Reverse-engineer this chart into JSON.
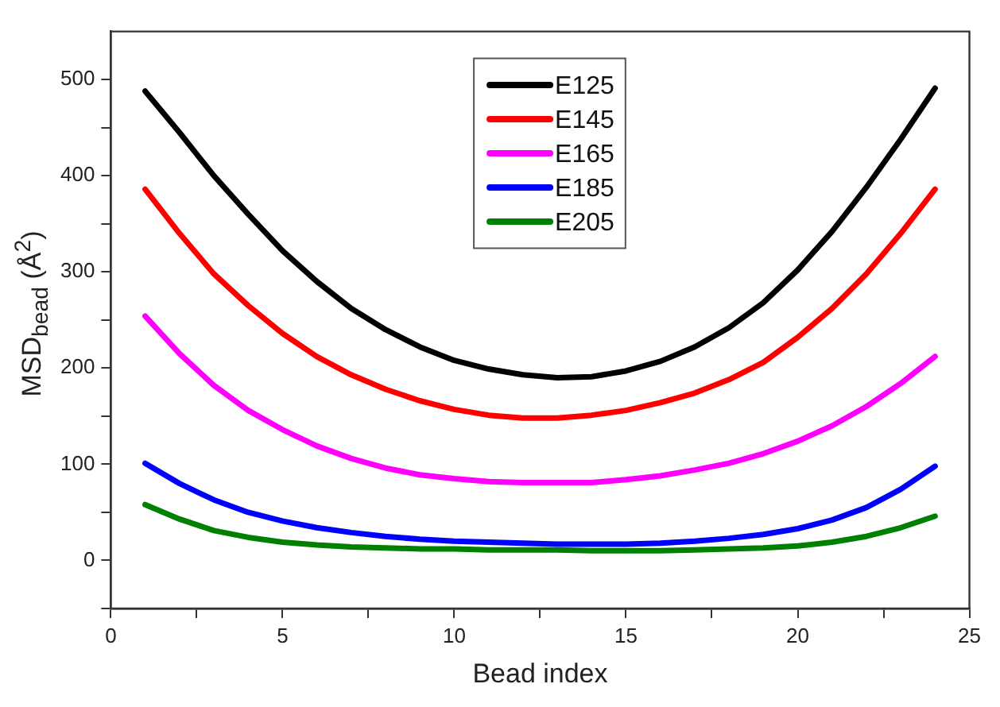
{
  "chart_data": {
    "type": "line",
    "xlabel": "Bead index",
    "ylabel": "MSD$_{bead}$ (Å$^{2}$)",
    "x": [
      1,
      2,
      3,
      4,
      5,
      6,
      7,
      8,
      9,
      10,
      11,
      12,
      13,
      14,
      15,
      16,
      17,
      18,
      19,
      20,
      21,
      22,
      23,
      24
    ],
    "series": [
      {
        "name": "E125",
        "color": "#000000",
        "values": [
          488,
          445,
          400,
          360,
          322,
          290,
          262,
          240,
          222,
          208,
          199,
          193,
          190,
          191,
          197,
          207,
          222,
          242,
          268,
          302,
          342,
          388,
          438,
          491
        ]
      },
      {
        "name": "E145",
        "color": "#ff0000",
        "values": [
          386,
          340,
          298,
          265,
          236,
          212,
          193,
          178,
          166,
          157,
          151,
          148,
          148,
          151,
          156,
          164,
          174,
          188,
          206,
          232,
          262,
          298,
          340,
          386
        ]
      },
      {
        "name": "E165",
        "color": "#ff00ff",
        "values": [
          254,
          215,
          182,
          156,
          136,
          119,
          106,
          96,
          89,
          85,
          82,
          81,
          81,
          81,
          84,
          88,
          94,
          101,
          111,
          124,
          140,
          160,
          184,
          212
        ]
      },
      {
        "name": "E185",
        "color": "#0000ff",
        "values": [
          101,
          80,
          63,
          50,
          41,
          34,
          29,
          25,
          22,
          20,
          19,
          18,
          17,
          17,
          17,
          18,
          20,
          23,
          27,
          33,
          42,
          55,
          74,
          98
        ]
      },
      {
        "name": "E205",
        "color": "#008000",
        "values": [
          58,
          43,
          31,
          24,
          19,
          16,
          14,
          13,
          12,
          12,
          11,
          11,
          11,
          10,
          10,
          10,
          11,
          12,
          13,
          15,
          19,
          25,
          34,
          46
        ]
      }
    ],
    "xlim": [
      0,
      25
    ],
    "ylim": [
      -50,
      550
    ],
    "xticks": [
      0,
      {
        "value": 2.5,
        "label": null
      },
      5,
      {
        "value": 7.5,
        "label": null
      },
      10,
      {
        "value": 12.5,
        "label": null
      },
      15,
      {
        "value": 17.5,
        "label": null
      },
      20,
      {
        "value": 22.5,
        "label": null
      },
      25
    ],
    "yticks": [
      {
        "value": -50,
        "label": null
      },
      0,
      {
        "value": 50,
        "label": null
      },
      100,
      {
        "value": 150,
        "label": null
      },
      200,
      {
        "value": 250,
        "label": null
      },
      300,
      {
        "value": 350,
        "label": null
      },
      400,
      {
        "value": 450,
        "label": null
      },
      500
    ],
    "grid": false,
    "legend": "top",
    "marker": "none",
    "line_style": "solid"
  }
}
